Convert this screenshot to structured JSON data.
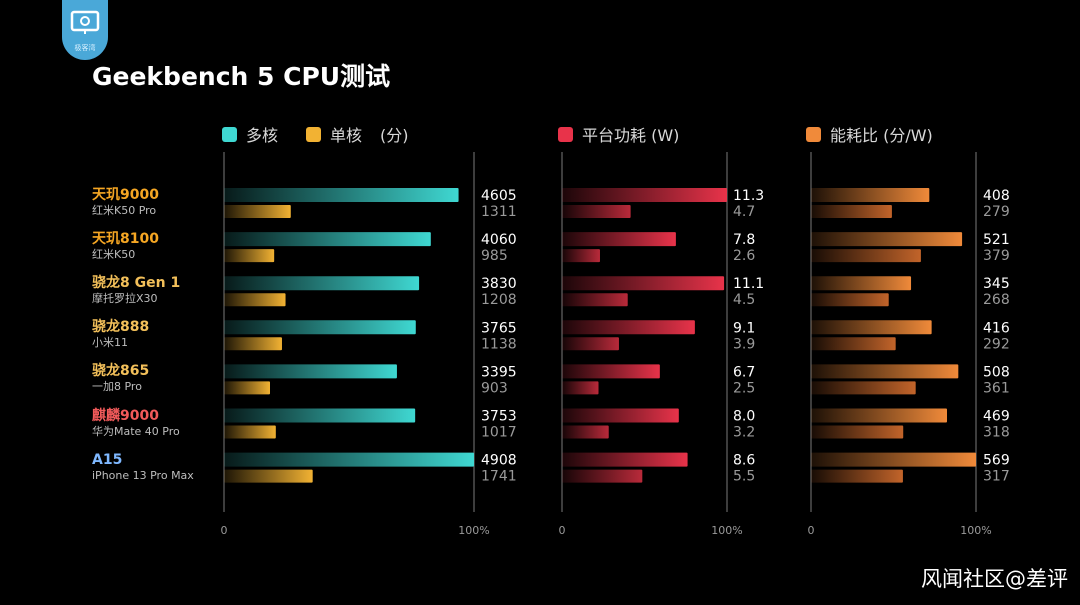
{
  "logo": {
    "text": "极客湾"
  },
  "watermark": "风闻社区@差评",
  "chart_data": {
    "type": "bar",
    "title": "Geekbench 5 CPU测试",
    "legend": [
      {
        "label": "多核",
        "color": "#3fd8d2"
      },
      {
        "label": "单核",
        "color": "#f2b233"
      },
      {
        "label": "(分)",
        "color": ""
      },
      {
        "label": "平台功耗 (W)",
        "color": "#e8334a"
      },
      {
        "label": "能耗比 (分/W)",
        "color": "#f08a3a"
      }
    ],
    "categories": [
      {
        "chip": "天玑9000",
        "model": "红米K50 Pro",
        "color": "#f5a623"
      },
      {
        "chip": "天玑8100",
        "model": "红米K50",
        "color": "#f5a623"
      },
      {
        "chip": "骁龙8 Gen 1",
        "model": "摩托罗拉X30",
        "color": "#f3c05a"
      },
      {
        "chip": "骁龙888",
        "model": "小米11",
        "color": "#f3c05a"
      },
      {
        "chip": "骁龙865",
        "model": "一加8 Pro",
        "color": "#f3c05a"
      },
      {
        "chip": "麒麟9000",
        "model": "华为Mate 40 Pro",
        "color": "#f25a5a"
      },
      {
        "chip": "A15",
        "model": "iPhone 13 Pro Max",
        "color": "#7fb8ff"
      }
    ],
    "panels": [
      {
        "name": "score",
        "axis_labels": [
          "0",
          "100%"
        ],
        "xlim": [
          0,
          4908
        ],
        "series": [
          {
            "name": "多核",
            "color": "#3fd8d2",
            "values": [
              4605,
              4060,
              3830,
              3765,
              3395,
              3753,
              4908
            ]
          },
          {
            "name": "单核",
            "color": "#f2b233",
            "values": [
              1311,
              985,
              1208,
              1138,
              903,
              1017,
              1741
            ]
          }
        ]
      },
      {
        "name": "power",
        "axis_labels": [
          "0",
          "100%"
        ],
        "xlim": [
          0,
          11.3
        ],
        "series": [
          {
            "name": "多核",
            "color": "#e8334a",
            "values": [
              11.3,
              7.8,
              11.1,
              9.1,
              6.7,
              8.0,
              8.6
            ],
            "decimals": 1
          },
          {
            "name": "单核",
            "color": "#b92a3a",
            "values": [
              4.7,
              2.6,
              4.5,
              3.9,
              2.5,
              3.2,
              5.5
            ],
            "decimals": 1
          }
        ]
      },
      {
        "name": "efficiency",
        "axis_labels": [
          "0",
          "100%"
        ],
        "xlim": [
          0,
          569
        ],
        "series": [
          {
            "name": "多核",
            "color": "#f08a3a",
            "values": [
              408,
              521,
              345,
              416,
              508,
              469,
              569
            ]
          },
          {
            "name": "单核",
            "color": "#c2642a",
            "values": [
              279,
              379,
              268,
              292,
              361,
              318,
              317
            ]
          }
        ]
      }
    ]
  }
}
